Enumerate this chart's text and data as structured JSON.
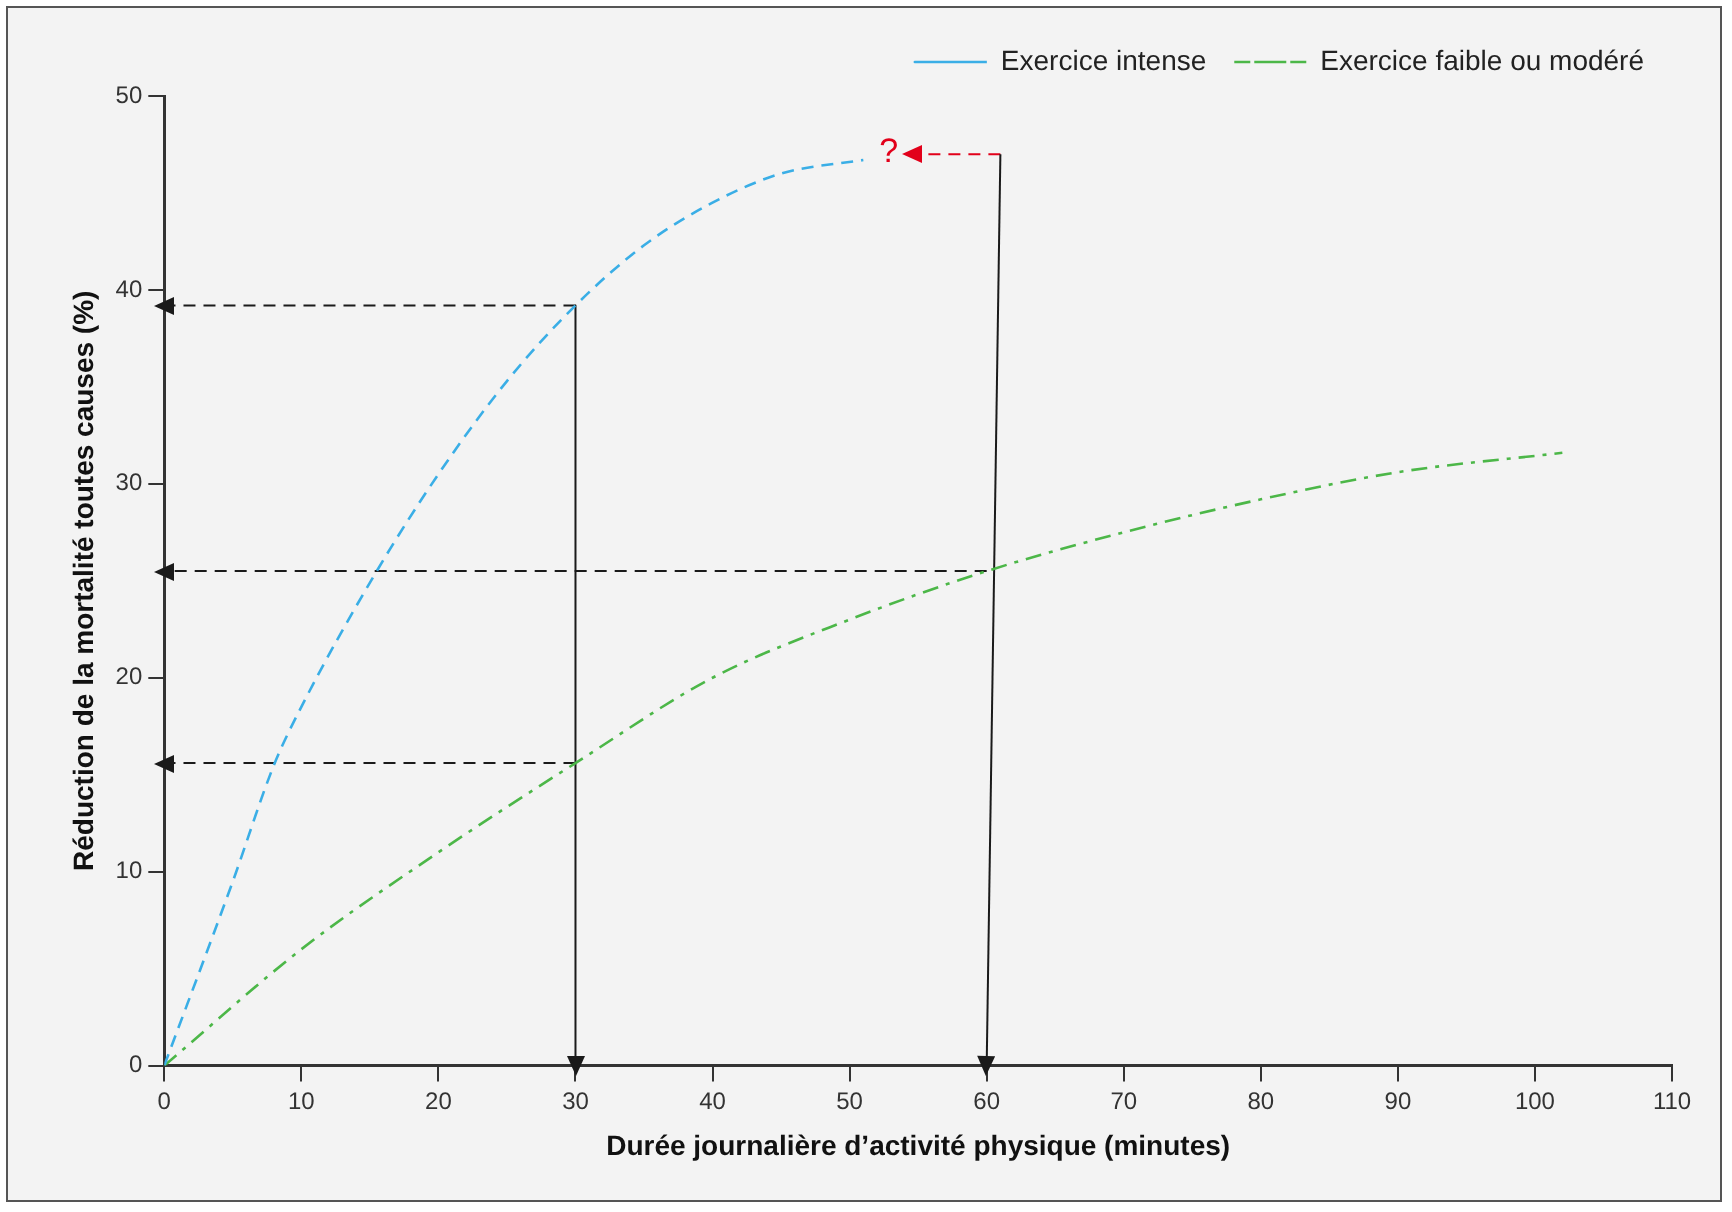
{
  "chart_data": {
    "type": "line",
    "xlabel": "Durée journalière d’activité physique (minutes)",
    "ylabel": "Réduction de la mortalité toutes causes (%)",
    "xlim": [
      0,
      110
    ],
    "xticks": [
      0,
      10,
      20,
      30,
      40,
      50,
      60,
      70,
      80,
      90,
      100,
      110
    ],
    "ylim": [
      0,
      50
    ],
    "yticks": [
      0,
      10,
      20,
      30,
      40,
      50
    ],
    "grid": false,
    "legend": "top right",
    "marker": "none",
    "series": [
      {
        "name": "Exercice intense",
        "color": "#3aaee6",
        "line_style": "dashed",
        "x": [
          0,
          5,
          8,
          10,
          15.5,
          20,
          25,
          30,
          35,
          40,
          45,
          51
        ],
        "values": [
          0,
          9.5,
          15.5,
          18.5,
          25.5,
          30.5,
          35.3,
          39.2,
          42.3,
          44.5,
          46,
          46.7
        ]
      },
      {
        "name": "Exercice faible ou modéré",
        "color": "#4cb748",
        "line_style": "dashdot",
        "x": [
          0,
          10,
          20,
          30,
          40,
          50,
          60,
          70,
          80,
          90,
          102
        ],
        "values": [
          0,
          6,
          11,
          15.6,
          20,
          23,
          25.5,
          27.5,
          29.2,
          30.6,
          31.6
        ]
      },
      {
        "color": "#1a1a1a",
        "line_style": "dashed",
        "marker": "triangle",
        "x": [
          30,
          0
        ],
        "values": [
          39.2,
          39.2
        ]
      },
      {
        "color": "#1a1a1a",
        "line_style": "solid",
        "marker": "triangle",
        "x": [
          30,
          30
        ],
        "values": [
          39.2,
          0
        ]
      },
      {
        "color": "#1a1a1a",
        "line_style": "dashed",
        "marker": "triangle",
        "x": [
          30,
          0
        ],
        "values": [
          15.6,
          15.6
        ]
      },
      {
        "color": "#1a1a1a",
        "line_style": "dashed",
        "marker": "triangle",
        "x": [
          60,
          0
        ],
        "values": [
          25.5,
          25.5
        ]
      },
      {
        "color": "#1a1a1a",
        "line_style": "solid",
        "marker": "triangle",
        "x": [
          61,
          60
        ],
        "values": [
          47,
          0
        ]
      },
      {
        "color": "#e2001a",
        "line_style": "dashed",
        "marker": "triangle",
        "x": [
          61,
          54.5
        ],
        "values": [
          47,
          47
        ]
      }
    ],
    "annotations": [
      "?"
    ]
  }
}
